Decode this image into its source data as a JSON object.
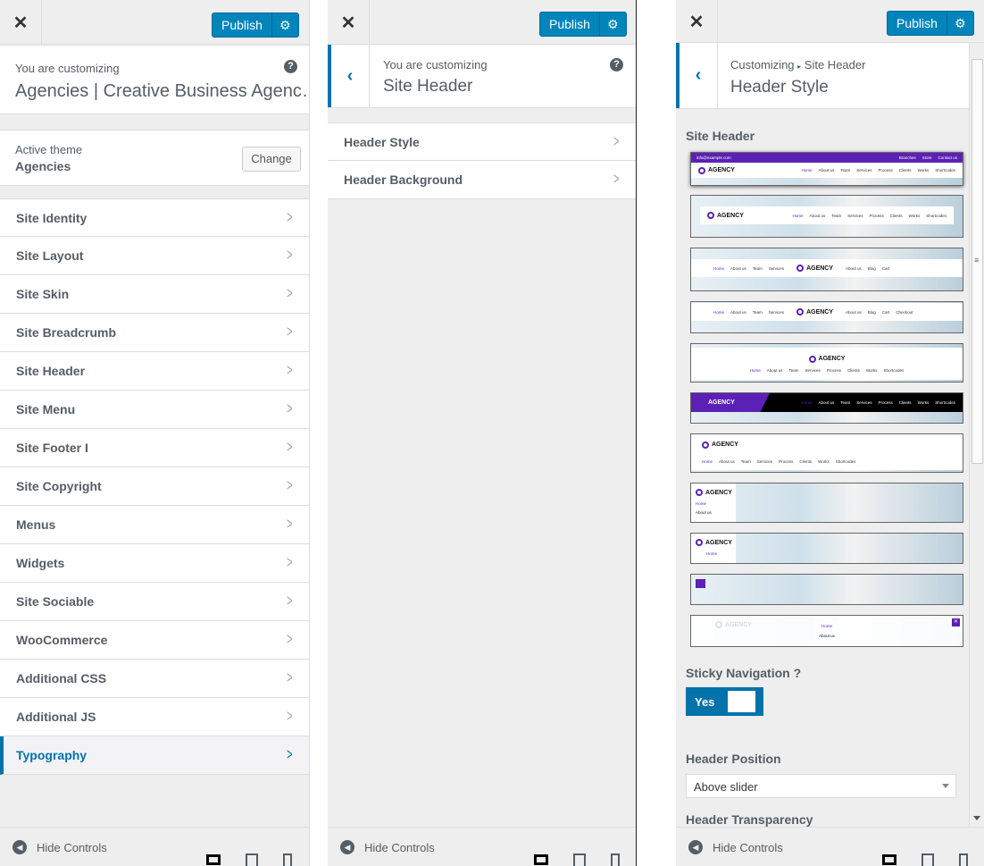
{
  "common": {
    "publish": "Publish",
    "hide_controls": "Hide Controls",
    "colors": {
      "accent": "#0073aa",
      "button": "#0085ba",
      "brand_purple": "#5b21b6"
    }
  },
  "panel1": {
    "customizing_label": "You are customizing",
    "site_title": "Agencies | Creative Business Agenc…",
    "active_theme_label": "Active theme",
    "active_theme": "Agencies",
    "change_label": "Change",
    "items": [
      {
        "label": "Site Identity"
      },
      {
        "label": "Site Layout"
      },
      {
        "label": "Site Skin"
      },
      {
        "label": "Site Breadcrumb"
      },
      {
        "label": "Site Header"
      },
      {
        "label": "Site Menu"
      },
      {
        "label": "Site Footer I"
      },
      {
        "label": "Site Copyright"
      },
      {
        "label": "Menus"
      },
      {
        "label": "Widgets"
      },
      {
        "label": "Site Sociable"
      },
      {
        "label": "WooCommerce"
      },
      {
        "label": "Additional CSS"
      },
      {
        "label": "Additional JS"
      },
      {
        "label": "Typography",
        "active": true
      }
    ]
  },
  "panel2": {
    "customizing_label": "You are customizing",
    "section_title": "Site Header",
    "items": [
      {
        "label": "Header Style"
      },
      {
        "label": "Header Background"
      }
    ]
  },
  "panel3": {
    "breadcrumb_root": "Customizing",
    "breadcrumb_section": "Site Header",
    "section_title": "Header Style",
    "site_header_label": "Site Header",
    "thumbnails": [
      {
        "variant": "topbar",
        "logo": "AGENCY",
        "top_left": "info@example.com",
        "top_right": [
          "Branches",
          "Store",
          "Contact us"
        ],
        "nav": [
          "Home",
          "About us",
          "Team",
          "Services",
          "Process",
          "Clients",
          "Works",
          "Shortcodes"
        ],
        "selected": true
      },
      {
        "variant": "boxed",
        "logo": "AGENCY",
        "nav": [
          "Home",
          "About us",
          "Team",
          "Services",
          "Process",
          "Clients",
          "Works",
          "Shortcodes"
        ]
      },
      {
        "variant": "split",
        "logo": "AGENCY",
        "nav": [
          "Home",
          "About us",
          "Team",
          "Services"
        ],
        "nav_right": [
          "About us",
          "Blog",
          "Cart"
        ]
      },
      {
        "variant": "split",
        "logo": "AGENCY",
        "nav": [
          "Home",
          "About us",
          "Team",
          "Services"
        ],
        "nav_right": [
          "About us",
          "Blog",
          "Cart",
          "Checkout"
        ]
      },
      {
        "variant": "center",
        "logo": "AGENCY",
        "nav": [
          "Home",
          "About us",
          "Team",
          "Services",
          "Process",
          "Clients",
          "Works",
          "Shortcodes"
        ]
      },
      {
        "variant": "dark",
        "logo": "AGENCY",
        "nav": [
          "Home",
          "About us",
          "Team",
          "Services",
          "Process",
          "Clients",
          "Works",
          "Shortcodes"
        ]
      },
      {
        "variant": "left-stacked",
        "logo": "AGENCY",
        "nav": [
          "Home",
          "About us",
          "Team",
          "Services",
          "Process",
          "Clients",
          "Works",
          "Shortcodes"
        ]
      },
      {
        "variant": "vertical",
        "logo": "AGENCY",
        "nav": [
          "Home",
          "About us"
        ]
      },
      {
        "variant": "vertical",
        "logo": "AGENCY",
        "nav": [
          "Home"
        ]
      },
      {
        "variant": "hamburger",
        "nav": []
      },
      {
        "variant": "overlay",
        "logo": "AGENCY",
        "nav": [
          "Home",
          "About us"
        ]
      }
    ],
    "sticky_label": "Sticky Navigation ?",
    "sticky_value": "Yes",
    "position_label": "Header Position",
    "position_value": "Above slider",
    "transparency_label": "Header Transparency"
  }
}
